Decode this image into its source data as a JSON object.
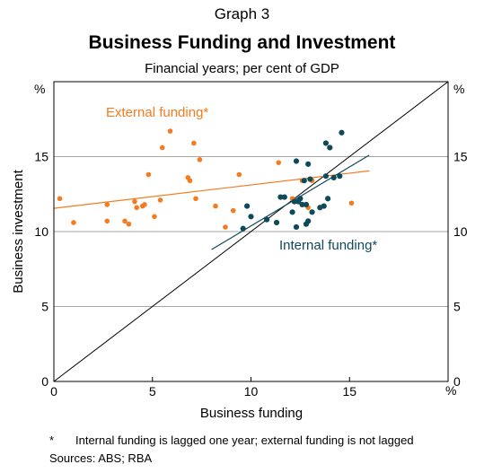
{
  "header": {
    "graph_number": "Graph 3",
    "title": "Business Funding and Investment",
    "subtitle": "Financial years; per cent of GDP"
  },
  "footnote": {
    "marker": "*",
    "text": "Internal funding is lagged one year; external funding is not lagged"
  },
  "sources": "Sources:  ABS; RBA",
  "colors": {
    "external": "#f47b20",
    "internal": "#0e4a5a",
    "frame": "#000000",
    "grid": "#a6a6a6"
  },
  "chart_data": {
    "type": "scatter",
    "xlabel": "Business funding",
    "ylabel": "Business investment",
    "x_unit": "%",
    "y_unit_left": "%",
    "y_unit_right": "%",
    "xlim": [
      0,
      20
    ],
    "ylim": [
      0,
      20
    ],
    "x_ticks": [
      0,
      5,
      10,
      15
    ],
    "x_tick_labels": [
      "0",
      "5",
      "10",
      "15"
    ],
    "y_ticks": [
      0,
      5,
      10,
      15
    ],
    "y_tick_labels": [
      "0",
      "5",
      "10",
      "15"
    ],
    "grid": true,
    "series": [
      {
        "name": "External funding*",
        "color": "#f47b20",
        "points": [
          [
            0.3,
            12.2
          ],
          [
            1.0,
            10.6
          ],
          [
            2.7,
            10.7
          ],
          [
            2.7,
            11.8
          ],
          [
            3.6,
            10.7
          ],
          [
            3.8,
            10.5
          ],
          [
            4.1,
            12.0
          ],
          [
            4.2,
            11.6
          ],
          [
            4.5,
            11.7
          ],
          [
            4.6,
            11.8
          ],
          [
            4.8,
            13.8
          ],
          [
            5.1,
            11.0
          ],
          [
            5.4,
            12.1
          ],
          [
            5.5,
            15.6
          ],
          [
            5.9,
            16.7
          ],
          [
            6.8,
            13.6
          ],
          [
            6.9,
            13.4
          ],
          [
            7.1,
            15.9
          ],
          [
            7.2,
            12.2
          ],
          [
            7.4,
            14.8
          ],
          [
            8.2,
            11.7
          ],
          [
            8.7,
            10.3
          ],
          [
            9.1,
            11.4
          ],
          [
            9.4,
            13.8
          ],
          [
            11.4,
            14.6
          ],
          [
            11.7,
            12.3
          ],
          [
            12.1,
            12.2
          ],
          [
            12.6,
            13.4
          ],
          [
            12.9,
            11.6
          ],
          [
            13.1,
            13.4
          ],
          [
            15.1,
            11.9
          ]
        ],
        "trend": [
          [
            0,
            11.55
          ],
          [
            16,
            14.05
          ]
        ]
      },
      {
        "name": "Internal funding*",
        "color": "#0e4a5a",
        "points": [
          [
            9.6,
            10.2
          ],
          [
            9.8,
            11.7
          ],
          [
            10.0,
            11.0
          ],
          [
            10.8,
            10.8
          ],
          [
            11.3,
            10.6
          ],
          [
            11.5,
            12.3
          ],
          [
            11.7,
            12.3
          ],
          [
            12.1,
            11.3
          ],
          [
            12.2,
            12.0
          ],
          [
            12.3,
            14.7
          ],
          [
            12.3,
            10.3
          ],
          [
            12.4,
            12.0
          ],
          [
            12.5,
            12.2
          ],
          [
            12.6,
            11.8
          ],
          [
            12.7,
            13.4
          ],
          [
            12.8,
            10.5
          ],
          [
            12.8,
            11.8
          ],
          [
            12.9,
            14.5
          ],
          [
            12.9,
            10.7
          ],
          [
            13.0,
            13.5
          ],
          [
            13.1,
            11.3
          ],
          [
            13.5,
            11.6
          ],
          [
            13.7,
            11.7
          ],
          [
            13.8,
            15.9
          ],
          [
            13.8,
            13.7
          ],
          [
            13.9,
            12.2
          ],
          [
            14.0,
            15.6
          ],
          [
            14.2,
            13.6
          ],
          [
            14.5,
            13.7
          ],
          [
            14.6,
            16.6
          ]
        ],
        "trend": [
          [
            8,
            8.8
          ],
          [
            16,
            15.1
          ]
        ]
      }
    ],
    "reference_line": {
      "from": [
        0,
        0
      ],
      "to": [
        20,
        20
      ]
    }
  }
}
